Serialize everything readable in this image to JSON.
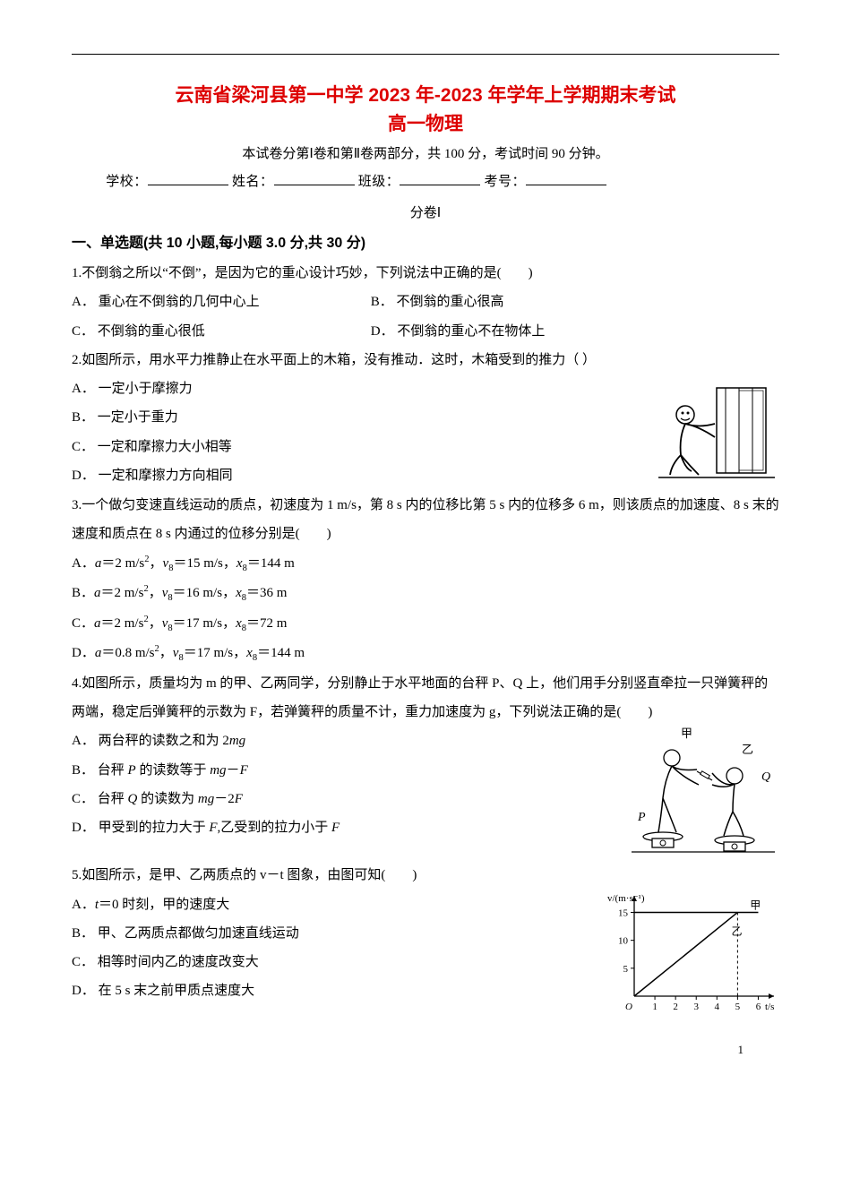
{
  "colors": {
    "title": "#dd0000",
    "text": "#000000",
    "background": "#ffffff",
    "rule": "#000000"
  },
  "typography": {
    "title_fontsize": 21,
    "body_fontsize": 15,
    "heading_fontsize": 16,
    "line_height": 2.15
  },
  "header": {
    "title_line1": "云南省梁河县第一中学 2023 年-2023 年学年上学期期末考试",
    "title_line2": "高一物理",
    "subtitle": "本试卷分第Ⅰ卷和第Ⅱ卷两部分，共 100 分，考试时间 90 分钟。",
    "info_labels": {
      "school": "学校：",
      "name": "姓名：",
      "class": "班级：",
      "id": "考号："
    },
    "part_label": "分卷Ⅰ"
  },
  "section1": {
    "heading": "一、单选题(共 10 小题,每小题 3.0 分,共 30 分)"
  },
  "q1": {
    "stem": "1.不倒翁之所以“不倒”，是因为它的重心设计巧妙，下列说法中正确的是(　　)",
    "A": "A．  重心在不倒翁的几何中心上",
    "B": "B．  不倒翁的重心很高",
    "C": "C．  不倒翁的重心很低",
    "D": "D．  不倒翁的重心不在物体上"
  },
  "q2": {
    "stem": "2.如图所示，用水平力推静止在水平面上的木箱，没有推动．这时，木箱受到的推力（  ）",
    "A": "A．  一定小于摩擦力",
    "B": "B．  一定小于重力",
    "C": "C．  一定和摩擦力大小相等",
    "D": "D．  一定和摩擦力方向相同"
  },
  "q3": {
    "stem": "3.一个做匀变速直线运动的质点，初速度为 1 m/s，第 8 s 内的位移比第 5 s 内的位移多 6 m，则该质点的加速度、8 s 末的速度和质点在 8 s 内通过的位移分别是(　　)"
  },
  "q4": {
    "stem": "4.如图所示，质量均为 m 的甲、乙两同学，分别静止于水平地面的台秤 P、Q 上，他们用手分别竖直牵拉一只弹簧秤的两端，稳定后弹簧秤的示数为 F，若弹簧秤的质量不计，重力加速度为 g，下列说法正确的是(　　)"
  },
  "q5": {
    "stem": "5.如图所示，是甲、乙两质点的 v－t 图象，由图可知(　　)"
  },
  "chart_q5": {
    "type": "line",
    "xlabel": "t/s",
    "ylabel": "v/(m·s⁻¹)",
    "xlim": [
      0,
      6.5
    ],
    "ylim": [
      0,
      17
    ],
    "xticks": [
      1,
      2,
      3,
      4,
      5,
      6
    ],
    "yticks": [
      5,
      10,
      15
    ],
    "series": [
      {
        "name": "甲",
        "points": [
          [
            0,
            15
          ],
          [
            6,
            15
          ]
        ],
        "color": "#000000",
        "dash": "none"
      },
      {
        "name": "乙",
        "points": [
          [
            0,
            0
          ],
          [
            5,
            15
          ]
        ],
        "color": "#000000",
        "dash": "none"
      }
    ],
    "guide_dash_color": "#000000",
    "background_color": "#ffffff",
    "label_fontsize": 11
  },
  "page_number": "1"
}
